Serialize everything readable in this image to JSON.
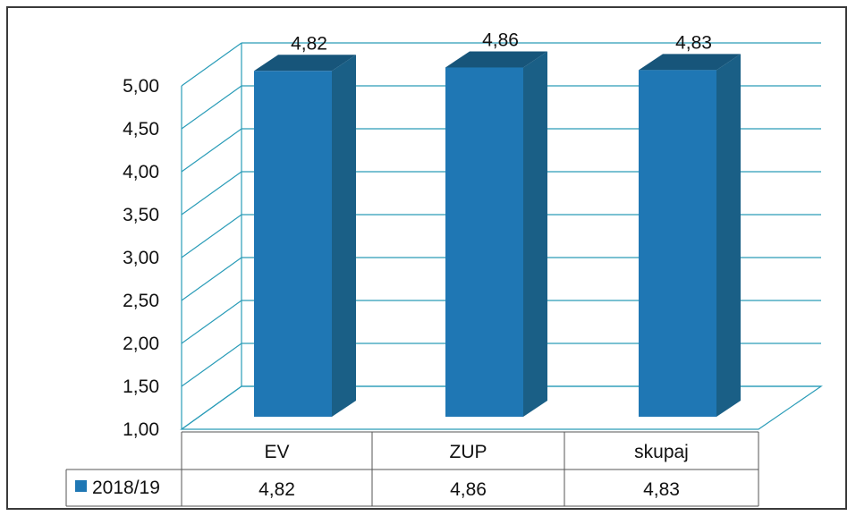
{
  "chart_data": {
    "type": "bar",
    "categories": [
      "EV",
      "ZUP",
      "skupaj"
    ],
    "series": [
      {
        "name": "2018/19",
        "values": [
          4.82,
          4.86,
          4.83
        ],
        "color": "#1f77b4"
      }
    ],
    "value_labels": [
      "4,82",
      "4,86",
      "4,83"
    ],
    "yticks": [
      "1,00",
      "1,50",
      "2,00",
      "2,50",
      "3,00",
      "3,50",
      "4,00",
      "4,50",
      "5,00"
    ],
    "ylim": [
      1,
      5
    ],
    "grid": true,
    "legend": "data-table-left",
    "title": "",
    "xlabel": "",
    "ylabel": ""
  }
}
